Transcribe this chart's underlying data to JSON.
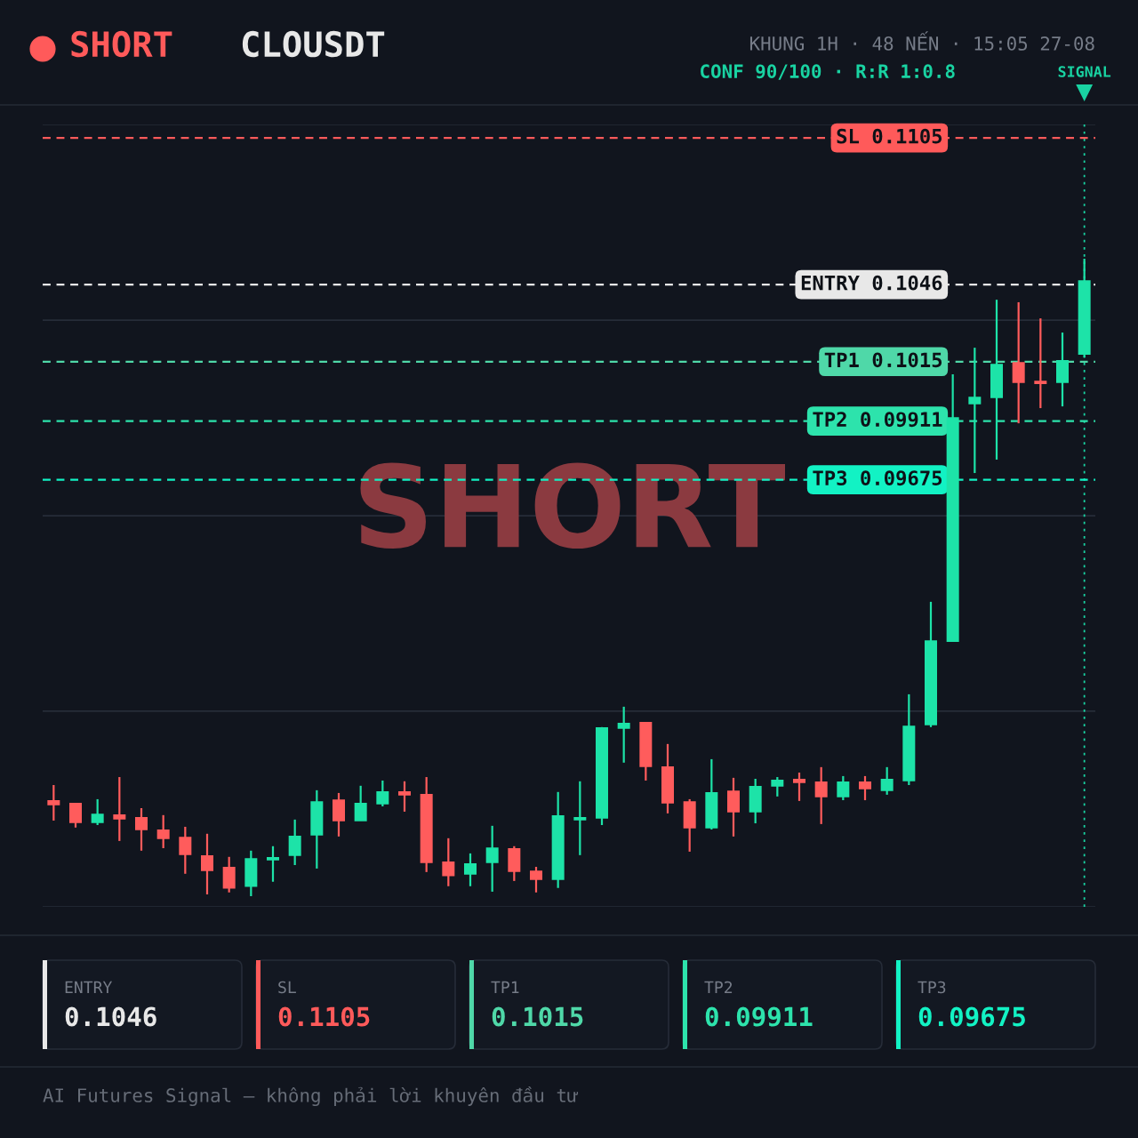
{
  "chart_data": {
    "type": "candlestick",
    "title": "SHORT",
    "subtitle": "CLOUSDT",
    "categories": [
      null,
      null,
      null,
      null,
      null,
      null,
      null,
      null,
      null,
      null,
      null,
      null,
      null,
      null,
      null,
      null,
      null,
      null,
      null,
      null,
      null,
      null,
      null,
      null,
      null,
      null,
      null,
      null,
      null,
      null,
      null,
      null,
      null,
      null,
      null,
      null,
      null,
      null,
      null,
      null,
      null,
      null,
      null,
      null,
      null,
      null,
      null,
      null
    ],
    "ohlc": [
      [
        0.08383,
        0.08447,
        0.08304,
        0.08369
      ],
      [
        0.08372,
        0.08372,
        0.08276,
        0.08297
      ],
      [
        0.08297,
        0.0839,
        0.08286,
        0.08329
      ],
      [
        0.08326,
        0.08479,
        0.08222,
        0.08311
      ],
      [
        0.08315,
        0.08354,
        0.08183,
        0.08268
      ],
      [
        0.08265,
        0.08326,
        0.08193,
        0.08233
      ],
      [
        0.08236,
        0.08279,
        0.0809,
        0.08168
      ],
      [
        0.08161,
        0.08251,
        0.08007,
        0.08104
      ],
      [
        0.08115,
        0.08158,
        0.08015,
        0.08033
      ],
      [
        0.0804,
        0.08183,
        0.08,
        0.0815
      ],
      [
        0.08147,
        0.08201,
        0.08058,
        0.08154
      ],
      [
        0.08165,
        0.08308,
        0.08125,
        0.0824
      ],
      [
        0.08247,
        0.08426,
        0.08111,
        0.08379
      ],
      [
        0.08386,
        0.08415,
        0.0824,
        0.08304
      ],
      [
        0.08304,
        0.08444,
        0.08304,
        0.08372
      ],
      [
        0.08372,
        0.08465,
        0.08361,
        0.08419
      ],
      [
        0.08419,
        0.08462,
        0.0834,
        0.08408
      ],
      [
        0.08408,
        0.08479,
        0.08097,
        0.08136
      ],
      [
        0.08136,
        0.08233,
        0.0804,
        0.08083
      ],
      [
        0.0809,
        0.08172,
        0.0804,
        0.08129
      ],
      [
        0.08136,
        0.08283,
        0.08018,
        0.08193
      ],
      [
        0.0819,
        0.08201,
        0.08061,
        0.081
      ],
      [
        0.081,
        0.08118,
        0.08015,
        0.08068
      ],
      [
        0.08068,
        0.08419,
        0.08033,
        0.08322
      ],
      [
        0.08308,
        0.08462,
        0.08165,
        0.08315
      ],
      [
        0.08315,
        0.0868,
        0.08286,
        0.08676
      ],
      [
        0.08676,
        0.08762,
        0.08537,
        0.08694
      ],
      [
        0.08698,
        0.08698,
        0.08465,
        0.08522
      ],
      [
        0.08519,
        0.08612,
        0.08333,
        0.08376
      ],
      [
        0.08379,
        0.0839,
        0.08179,
        0.08276
      ],
      [
        0.08276,
        0.08551,
        0.08268,
        0.08415
      ],
      [
        0.08422,
        0.08476,
        0.0824,
        0.0834
      ],
      [
        0.0834,
        0.08472,
        0.08293,
        0.0844
      ],
      [
        0.08444,
        0.08479,
        0.08401,
        0.08465
      ],
      [
        0.08469,
        0.08497,
        0.08383,
        0.08458
      ],
      [
        0.08458,
        0.08519,
        0.0829,
        0.08401
      ],
      [
        0.08401,
        0.08483,
        0.08386,
        0.08458
      ],
      [
        0.08458,
        0.08483,
        0.08386,
        0.08433
      ],
      [
        0.08426,
        0.08519,
        0.08408,
        0.08469
      ],
      [
        0.08465,
        0.08812,
        0.08447,
        0.08683
      ],
      [
        0.0869,
        0.09184,
        0.0868,
        0.09026
      ],
      [
        0.09026,
        0.10099,
        0.09026,
        0.09924
      ],
      [
        0.09981,
        0.10206,
        0.09702,
        0.10006
      ],
      [
        0.10006,
        0.10399,
        0.09756,
        0.10138
      ],
      [
        0.10145,
        0.10389,
        0.09902,
        0.10067
      ],
      [
        0.1007,
        0.10324,
        0.09963,
        0.10063
      ],
      [
        0.10067,
        0.10267,
        0.0997,
        0.10153
      ],
      [
        0.10181,
        0.10564,
        0.10167,
        0.10474
      ]
    ],
    "colors": [
      "#ff5c5c",
      "#ff5c5c",
      "#1de3a8",
      "#ff5c5c",
      "#ff5c5c",
      "#ff5c5c",
      "#ff5c5c",
      "#ff5c5c",
      "#ff5c5c",
      "#1de3a8",
      "#1de3a8",
      "#1de3a8",
      "#1de3a8",
      "#ff5c5c",
      "#1de3a8",
      "#1de3a8",
      "#ff5c5c",
      "#ff5c5c",
      "#ff5c5c",
      "#1de3a8",
      "#1de3a8",
      "#ff5c5c",
      "#ff5c5c",
      "#1de3a8",
      "#1de3a8",
      "#1de3a8",
      "#1de3a8",
      "#ff5c5c",
      "#ff5c5c",
      "#ff5c5c",
      "#1de3a8",
      "#ff5c5c",
      "#1de3a8",
      "#1de3a8",
      "#ff5c5c",
      "#ff5c5c",
      "#1de3a8",
      "#ff5c5c",
      "#1de3a8",
      "#1de3a8",
      "#1de3a8",
      "#1de3a8",
      "#1de3a8",
      "#1de3a8",
      "#ff5c5c",
      "#ff5c5c",
      "#1de3a8",
      "#1de3a8"
    ],
    "ylim": [
      0.07957,
      0.11104
    ],
    "yticks": [
      {
        "value": 0.07957,
        "label": null
      },
      {
        "value": 0.08744,
        "label": null
      },
      {
        "value": 0.0953,
        "label": null
      },
      {
        "value": 0.10317,
        "label": null
      },
      {
        "value": 0.11104,
        "label": null
      }
    ],
    "grid": "y",
    "ref_lines": [
      {
        "axis": "y",
        "value": 0.1046,
        "label": "ENTRY 0.1046",
        "color": "#e8e8e8",
        "line_style": "dashed"
      },
      {
        "axis": "y",
        "value": 0.1105,
        "label": "SL 0.1105",
        "color": "#ff5a5a",
        "line_style": "dashed"
      },
      {
        "axis": "y",
        "value": 0.1015,
        "label": "TP1 0.1015",
        "color": "#4fd8a8",
        "line_style": "dashed"
      },
      {
        "axis": "y",
        "value": 0.09911,
        "label": "TP2 0.09911",
        "color": "#2de3ac",
        "line_style": "dashed"
      },
      {
        "axis": "y",
        "value": 0.09675,
        "label": "TP3 0.09675",
        "color": "#12f2c4",
        "line_style": "dashed"
      }
    ],
    "annotations": [
      "KHUNG 1H · 48 NẾN · 15:05 27-08",
      "CONF 90/100 · R:R 1:0.8",
      "SHORT",
      "ENTRY",
      "0.1046",
      "SL",
      "0.1105",
      "TP1",
      "0.1015",
      "TP2",
      "0.09911",
      "TP3",
      "0.09675",
      "AI Futures Signal — không phải lời khuyên đầu tư",
      "SIGNAL"
    ]
  }
}
